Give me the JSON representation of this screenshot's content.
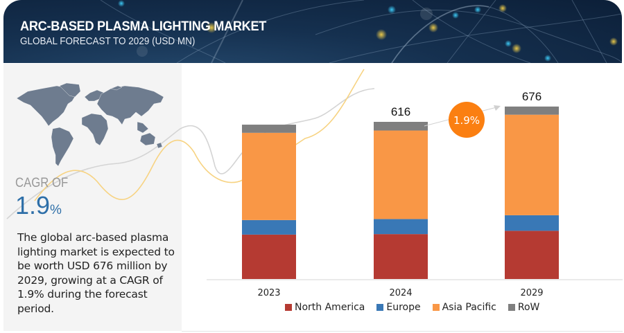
{
  "header": {
    "title": "ARC-BASED PLASMA LIGHTING MARKET",
    "subtitle": "GLOBAL FORECAST TO 2029 (USD MN)"
  },
  "summary": {
    "cagr_label": "CAGR OF",
    "cagr_value": "1.9",
    "cagr_unit": "%",
    "description": "The global arc-based plasma lighting market is expected to be worth USD 676 million by 2029, growing at a CAGR of 1.9% during the forecast period.",
    "map_icon": "world-map-icon"
  },
  "colors": {
    "north_america": "#b53a32",
    "europe": "#3978b6",
    "asia_pacific": "#f99746",
    "row": "#7f7f7f",
    "cagr_badge": "#fb7f11",
    "accent_blue": "#2e6fa8"
  },
  "chart_data": {
    "type": "bar",
    "stacked": true,
    "title": "ARC-BASED PLASMA LIGHTING MARKET",
    "subtitle": "GLOBAL FORECAST TO 2029 (USD MN)",
    "xlabel": "",
    "ylabel": "",
    "categories": [
      "2023",
      "2024",
      "2029"
    ],
    "series": [
      {
        "name": "North America",
        "key": "north_america",
        "values": [
          174,
          176,
          189
        ]
      },
      {
        "name": "Europe",
        "key": "europe",
        "values": [
          57,
          59,
          61
        ]
      },
      {
        "name": "Asia Pacific",
        "key": "asia_pacific",
        "values": [
          342,
          347,
          394
        ]
      },
      {
        "name": "RoW",
        "key": "row",
        "values": [
          32,
          34,
          32
        ]
      }
    ],
    "totals": [
      605,
      616,
      676
    ],
    "total_labels": [
      "",
      "616",
      "676"
    ],
    "ylim": [
      0,
      700
    ],
    "grid": false,
    "legend_position": "bottom",
    "annotations": [
      {
        "type": "cagr-badge",
        "text": "1.9%",
        "from": "2024",
        "to": "2029"
      }
    ]
  }
}
